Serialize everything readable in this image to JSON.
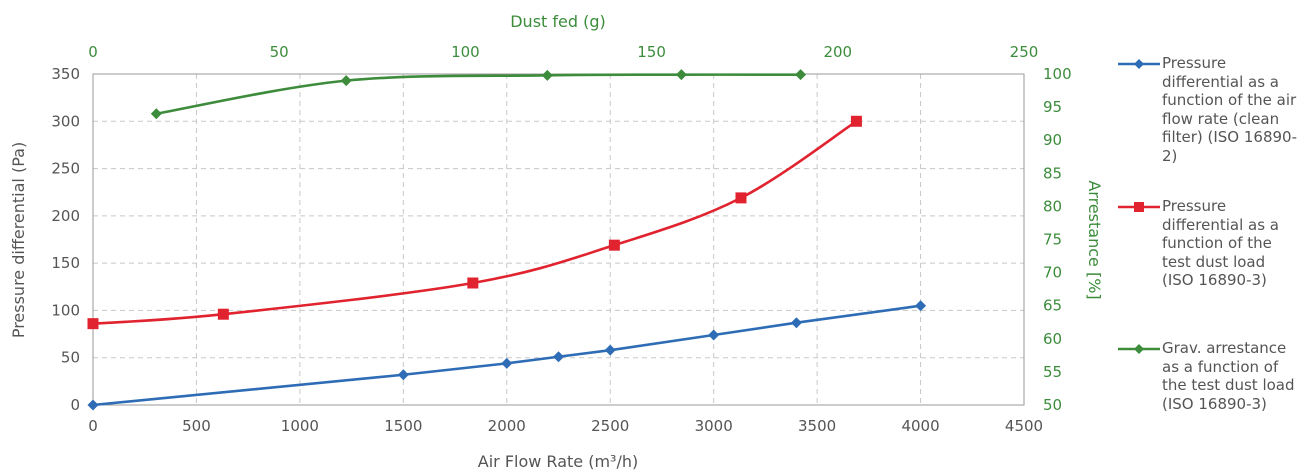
{
  "chart_data": {
    "type": "line",
    "title": "",
    "xlabel": "Air Flow Rate (m³/h)",
    "ylabel": "Pressure differential  (Pa)",
    "x2label": "Dust fed (g)",
    "y2label": "Arrestance [%]",
    "xlim": [
      0,
      4500
    ],
    "ylim": [
      0,
      350
    ],
    "x2lim": [
      0,
      250
    ],
    "y2lim": [
      50,
      100
    ],
    "x_ticks": [
      "0",
      "500",
      "1000",
      "1500",
      "2000",
      "2500",
      "3000",
      "3500",
      "4000",
      "4500"
    ],
    "y_ticks": [
      "0",
      "50",
      "100",
      "150",
      "200",
      "250",
      "300",
      "350"
    ],
    "x2_ticks": [
      "0",
      "50",
      "100",
      "150",
      "200",
      "250"
    ],
    "y2_ticks": [
      "50",
      "55",
      "60",
      "65",
      "70",
      "75",
      "80",
      "85",
      "90",
      "95",
      "100"
    ],
    "grid": true,
    "legend_position": "right",
    "series": [
      {
        "name": "Pressure differential as a function of the air flow rate (clean filter) (ISO 16890-2)",
        "color": "#2e6db6",
        "marker": "diamond",
        "axes": "x-y",
        "points": [
          [
            0,
            0
          ],
          [
            1500,
            32
          ],
          [
            2000,
            44
          ],
          [
            2250,
            51
          ],
          [
            2500,
            58
          ],
          [
            3000,
            74
          ],
          [
            3400,
            87
          ],
          [
            4000,
            105
          ]
        ]
      },
      {
        "name": "Pressure differential as a function of the test dust load (ISO 16890-3)",
        "color": "#e0232e",
        "marker": "square",
        "axes": "x2-y",
        "points": [
          [
            0,
            86
          ],
          [
            35,
            96
          ],
          [
            102,
            129
          ],
          [
            140,
            169
          ],
          [
            174,
            219
          ],
          [
            205,
            300
          ]
        ]
      },
      {
        "name": "Grav. arrestance as a function of the test dust load (ISO 16890-3)",
        "color": "#3c8c3c",
        "marker": "diamond",
        "axes": "x2-y2",
        "points": [
          [
            17,
            94
          ],
          [
            68,
            99
          ],
          [
            122,
            99.8
          ],
          [
            158,
            99.9
          ],
          [
            190,
            99.9
          ]
        ]
      }
    ]
  },
  "colors": {
    "axis_primary": "#555555",
    "axis_secondary": "#3c8c3c",
    "grid": "#c8c8c8"
  }
}
